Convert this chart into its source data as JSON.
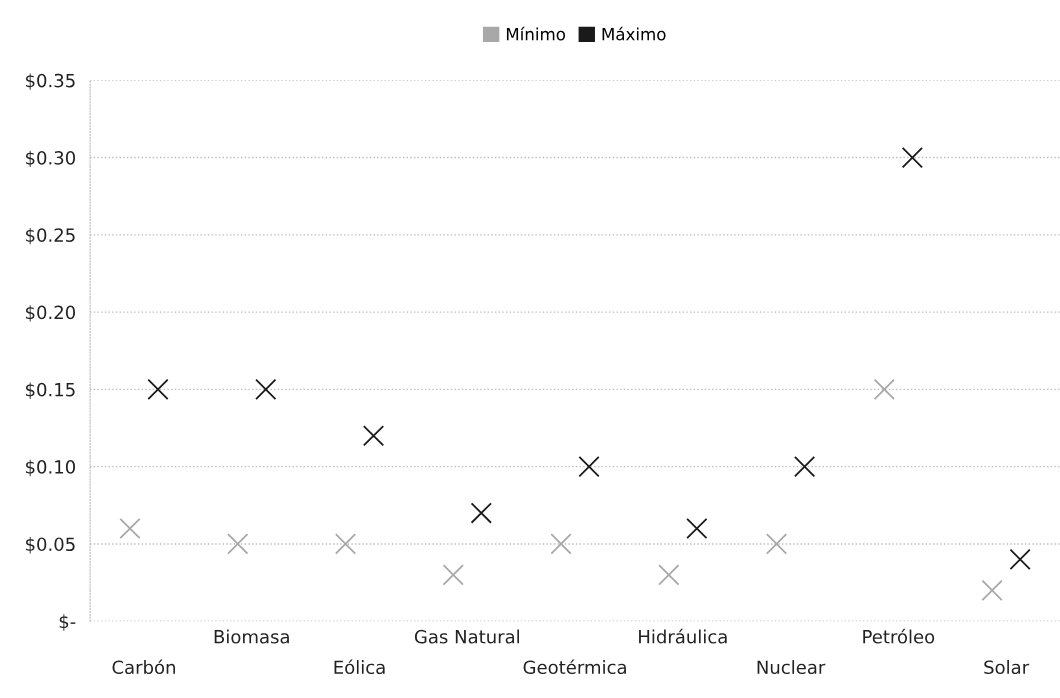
{
  "chart_data": {
    "type": "scatter",
    "categories": [
      "Carbón",
      "Biomasa",
      "Eólica",
      "Gas Natural",
      "Geotérmica",
      "Hidráulica",
      "Nuclear",
      "Petróleo",
      "Solar"
    ],
    "series": [
      {
        "name": "Mínimo",
        "color": "#a8a8a8",
        "values": [
          0.06,
          0.05,
          0.05,
          0.03,
          0.05,
          0.03,
          0.05,
          0.15,
          0.02
        ]
      },
      {
        "name": "Máximo",
        "color": "#1a1a1a",
        "values": [
          0.15,
          0.15,
          0.12,
          0.07,
          0.1,
          0.06,
          0.1,
          0.3,
          0.04
        ]
      }
    ],
    "ylim": [
      0,
      0.35
    ],
    "yticks": [
      {
        "value": 0,
        "label": "$-"
      },
      {
        "value": 0.05,
        "label": "$0.05"
      },
      {
        "value": 0.1,
        "label": "$0.10"
      },
      {
        "value": 0.15,
        "label": "$0.15"
      },
      {
        "value": 0.2,
        "label": "$0.20"
      },
      {
        "value": 0.25,
        "label": "$0.25"
      },
      {
        "value": 0.3,
        "label": "$0.30"
      },
      {
        "value": 0.35,
        "label": "$0.35"
      }
    ],
    "grid": "y",
    "legend": "top",
    "marker": "cross"
  }
}
